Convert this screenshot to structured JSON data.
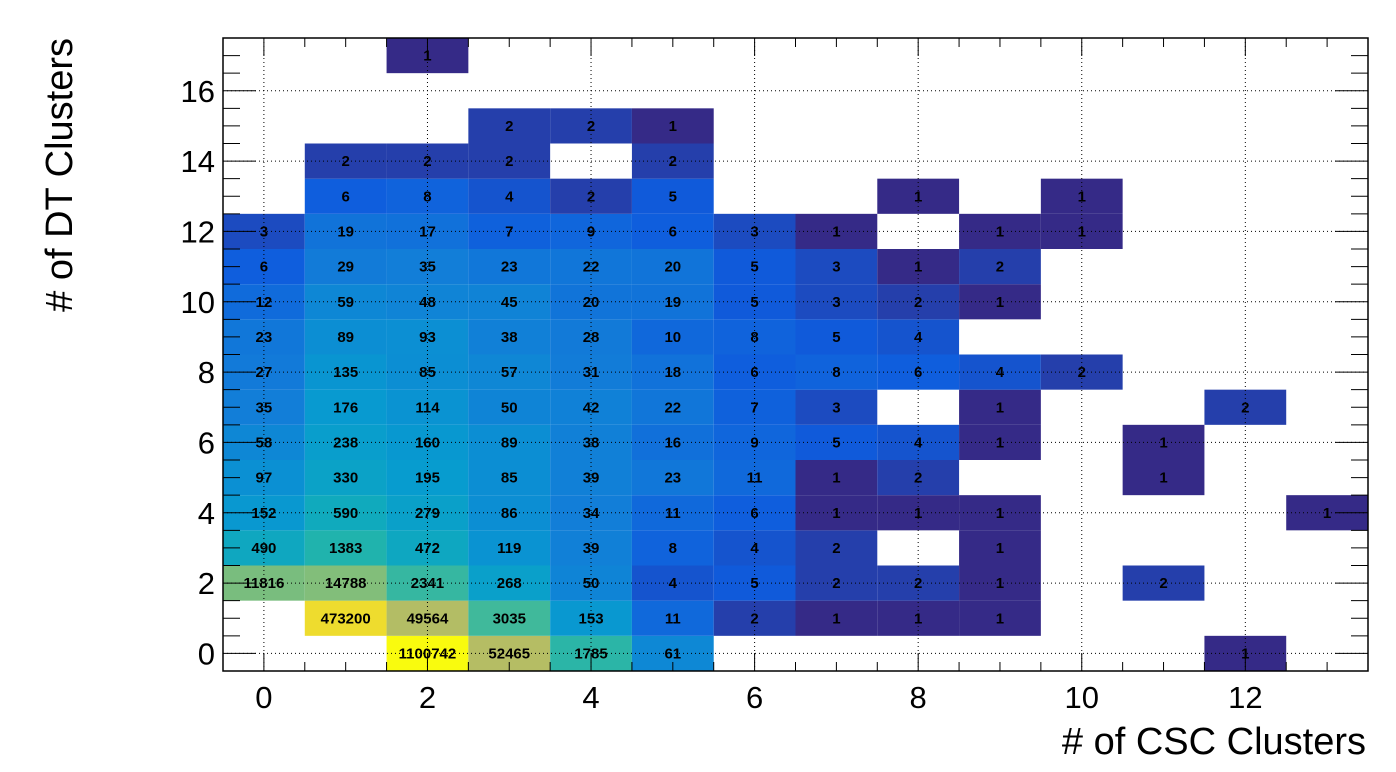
{
  "chart_data": {
    "type": "heatmap",
    "xlabel": "# of CSC Clusters",
    "ylabel": "# of DT Clusters",
    "xlim": [
      -0.5,
      13.5
    ],
    "ylim": [
      -0.5,
      17.5
    ],
    "x_ticks": [
      0,
      2,
      4,
      6,
      8,
      10,
      12
    ],
    "y_ticks": [
      0,
      2,
      4,
      6,
      8,
      10,
      12,
      14,
      16
    ],
    "grid": true,
    "log_color_scale": true,
    "cells": [
      {
        "x": 2,
        "y": 0,
        "v": 1100742
      },
      {
        "x": 3,
        "y": 0,
        "v": 52465
      },
      {
        "x": 4,
        "y": 0,
        "v": 1785
      },
      {
        "x": 5,
        "y": 0,
        "v": 61
      },
      {
        "x": 12,
        "y": 0,
        "v": 1
      },
      {
        "x": 1,
        "y": 1,
        "v": 473200
      },
      {
        "x": 2,
        "y": 1,
        "v": 49564
      },
      {
        "x": 3,
        "y": 1,
        "v": 3035
      },
      {
        "x": 4,
        "y": 1,
        "v": 153
      },
      {
        "x": 5,
        "y": 1,
        "v": 11
      },
      {
        "x": 6,
        "y": 1,
        "v": 2
      },
      {
        "x": 7,
        "y": 1,
        "v": 1
      },
      {
        "x": 8,
        "y": 1,
        "v": 1
      },
      {
        "x": 9,
        "y": 1,
        "v": 1
      },
      {
        "x": 0,
        "y": 2,
        "v": 11816
      },
      {
        "x": 1,
        "y": 2,
        "v": 14788
      },
      {
        "x": 2,
        "y": 2,
        "v": 2341
      },
      {
        "x": 3,
        "y": 2,
        "v": 268
      },
      {
        "x": 4,
        "y": 2,
        "v": 50
      },
      {
        "x": 5,
        "y": 2,
        "v": 4
      },
      {
        "x": 6,
        "y": 2,
        "v": 5
      },
      {
        "x": 7,
        "y": 2,
        "v": 2
      },
      {
        "x": 8,
        "y": 2,
        "v": 2
      },
      {
        "x": 9,
        "y": 2,
        "v": 1
      },
      {
        "x": 11,
        "y": 2,
        "v": 2
      },
      {
        "x": 0,
        "y": 3,
        "v": 490
      },
      {
        "x": 1,
        "y": 3,
        "v": 1383
      },
      {
        "x": 2,
        "y": 3,
        "v": 472
      },
      {
        "x": 3,
        "y": 3,
        "v": 119
      },
      {
        "x": 4,
        "y": 3,
        "v": 39
      },
      {
        "x": 5,
        "y": 3,
        "v": 8
      },
      {
        "x": 6,
        "y": 3,
        "v": 4
      },
      {
        "x": 7,
        "y": 3,
        "v": 2
      },
      {
        "x": 9,
        "y": 3,
        "v": 1
      },
      {
        "x": 0,
        "y": 4,
        "v": 152
      },
      {
        "x": 1,
        "y": 4,
        "v": 590
      },
      {
        "x": 2,
        "y": 4,
        "v": 279
      },
      {
        "x": 3,
        "y": 4,
        "v": 86
      },
      {
        "x": 4,
        "y": 4,
        "v": 34
      },
      {
        "x": 5,
        "y": 4,
        "v": 11
      },
      {
        "x": 6,
        "y": 4,
        "v": 6
      },
      {
        "x": 7,
        "y": 4,
        "v": 1
      },
      {
        "x": 8,
        "y": 4,
        "v": 1
      },
      {
        "x": 9,
        "y": 4,
        "v": 1
      },
      {
        "x": 13,
        "y": 4,
        "v": 1
      },
      {
        "x": 0,
        "y": 5,
        "v": 97
      },
      {
        "x": 1,
        "y": 5,
        "v": 330
      },
      {
        "x": 2,
        "y": 5,
        "v": 195
      },
      {
        "x": 3,
        "y": 5,
        "v": 85
      },
      {
        "x": 4,
        "y": 5,
        "v": 39
      },
      {
        "x": 5,
        "y": 5,
        "v": 23
      },
      {
        "x": 6,
        "y": 5,
        "v": 11
      },
      {
        "x": 7,
        "y": 5,
        "v": 1
      },
      {
        "x": 8,
        "y": 5,
        "v": 2
      },
      {
        "x": 11,
        "y": 5,
        "v": 1
      },
      {
        "x": 0,
        "y": 6,
        "v": 58
      },
      {
        "x": 1,
        "y": 6,
        "v": 238
      },
      {
        "x": 2,
        "y": 6,
        "v": 160
      },
      {
        "x": 3,
        "y": 6,
        "v": 89
      },
      {
        "x": 4,
        "y": 6,
        "v": 38
      },
      {
        "x": 5,
        "y": 6,
        "v": 16
      },
      {
        "x": 6,
        "y": 6,
        "v": 9
      },
      {
        "x": 7,
        "y": 6,
        "v": 5
      },
      {
        "x": 8,
        "y": 6,
        "v": 4
      },
      {
        "x": 9,
        "y": 6,
        "v": 1
      },
      {
        "x": 11,
        "y": 6,
        "v": 1
      },
      {
        "x": 0,
        "y": 7,
        "v": 35
      },
      {
        "x": 1,
        "y": 7,
        "v": 176
      },
      {
        "x": 2,
        "y": 7,
        "v": 114
      },
      {
        "x": 3,
        "y": 7,
        "v": 50
      },
      {
        "x": 4,
        "y": 7,
        "v": 42
      },
      {
        "x": 5,
        "y": 7,
        "v": 22
      },
      {
        "x": 6,
        "y": 7,
        "v": 7
      },
      {
        "x": 7,
        "y": 7,
        "v": 3
      },
      {
        "x": 9,
        "y": 7,
        "v": 1
      },
      {
        "x": 12,
        "y": 7,
        "v": 2
      },
      {
        "x": 0,
        "y": 8,
        "v": 27
      },
      {
        "x": 1,
        "y": 8,
        "v": 135
      },
      {
        "x": 2,
        "y": 8,
        "v": 85
      },
      {
        "x": 3,
        "y": 8,
        "v": 57
      },
      {
        "x": 4,
        "y": 8,
        "v": 31
      },
      {
        "x": 5,
        "y": 8,
        "v": 18
      },
      {
        "x": 6,
        "y": 8,
        "v": 6
      },
      {
        "x": 7,
        "y": 8,
        "v": 8
      },
      {
        "x": 8,
        "y": 8,
        "v": 6
      },
      {
        "x": 9,
        "y": 8,
        "v": 4
      },
      {
        "x": 10,
        "y": 8,
        "v": 2
      },
      {
        "x": 0,
        "y": 9,
        "v": 23
      },
      {
        "x": 1,
        "y": 9,
        "v": 89
      },
      {
        "x": 2,
        "y": 9,
        "v": 93
      },
      {
        "x": 3,
        "y": 9,
        "v": 38
      },
      {
        "x": 4,
        "y": 9,
        "v": 28
      },
      {
        "x": 5,
        "y": 9,
        "v": 10
      },
      {
        "x": 6,
        "y": 9,
        "v": 8
      },
      {
        "x": 7,
        "y": 9,
        "v": 5
      },
      {
        "x": 8,
        "y": 9,
        "v": 4
      },
      {
        "x": 0,
        "y": 10,
        "v": 12
      },
      {
        "x": 1,
        "y": 10,
        "v": 59
      },
      {
        "x": 2,
        "y": 10,
        "v": 48
      },
      {
        "x": 3,
        "y": 10,
        "v": 45
      },
      {
        "x": 4,
        "y": 10,
        "v": 20
      },
      {
        "x": 5,
        "y": 10,
        "v": 19
      },
      {
        "x": 6,
        "y": 10,
        "v": 5
      },
      {
        "x": 7,
        "y": 10,
        "v": 3
      },
      {
        "x": 8,
        "y": 10,
        "v": 2
      },
      {
        "x": 9,
        "y": 10,
        "v": 1
      },
      {
        "x": 0,
        "y": 11,
        "v": 6
      },
      {
        "x": 1,
        "y": 11,
        "v": 29
      },
      {
        "x": 2,
        "y": 11,
        "v": 35
      },
      {
        "x": 3,
        "y": 11,
        "v": 23
      },
      {
        "x": 4,
        "y": 11,
        "v": 22
      },
      {
        "x": 5,
        "y": 11,
        "v": 20
      },
      {
        "x": 6,
        "y": 11,
        "v": 5
      },
      {
        "x": 7,
        "y": 11,
        "v": 3
      },
      {
        "x": 8,
        "y": 11,
        "v": 1
      },
      {
        "x": 9,
        "y": 11,
        "v": 2
      },
      {
        "x": 0,
        "y": 12,
        "v": 3
      },
      {
        "x": 1,
        "y": 12,
        "v": 19
      },
      {
        "x": 2,
        "y": 12,
        "v": 17
      },
      {
        "x": 3,
        "y": 12,
        "v": 7
      },
      {
        "x": 4,
        "y": 12,
        "v": 9
      },
      {
        "x": 5,
        "y": 12,
        "v": 6
      },
      {
        "x": 6,
        "y": 12,
        "v": 3
      },
      {
        "x": 7,
        "y": 12,
        "v": 1
      },
      {
        "x": 9,
        "y": 12,
        "v": 1
      },
      {
        "x": 10,
        "y": 12,
        "v": 1
      },
      {
        "x": 1,
        "y": 13,
        "v": 6
      },
      {
        "x": 2,
        "y": 13,
        "v": 8
      },
      {
        "x": 3,
        "y": 13,
        "v": 4
      },
      {
        "x": 4,
        "y": 13,
        "v": 2
      },
      {
        "x": 5,
        "y": 13,
        "v": 5
      },
      {
        "x": 8,
        "y": 13,
        "v": 1
      },
      {
        "x": 10,
        "y": 13,
        "v": 1
      },
      {
        "x": 1,
        "y": 14,
        "v": 2
      },
      {
        "x": 2,
        "y": 14,
        "v": 2
      },
      {
        "x": 3,
        "y": 14,
        "v": 2
      },
      {
        "x": 5,
        "y": 14,
        "v": 2
      },
      {
        "x": 3,
        "y": 15,
        "v": 2
      },
      {
        "x": 4,
        "y": 15,
        "v": 2
      },
      {
        "x": 5,
        "y": 15,
        "v": 1
      },
      {
        "x": 2,
        "y": 17,
        "v": 1
      }
    ]
  }
}
